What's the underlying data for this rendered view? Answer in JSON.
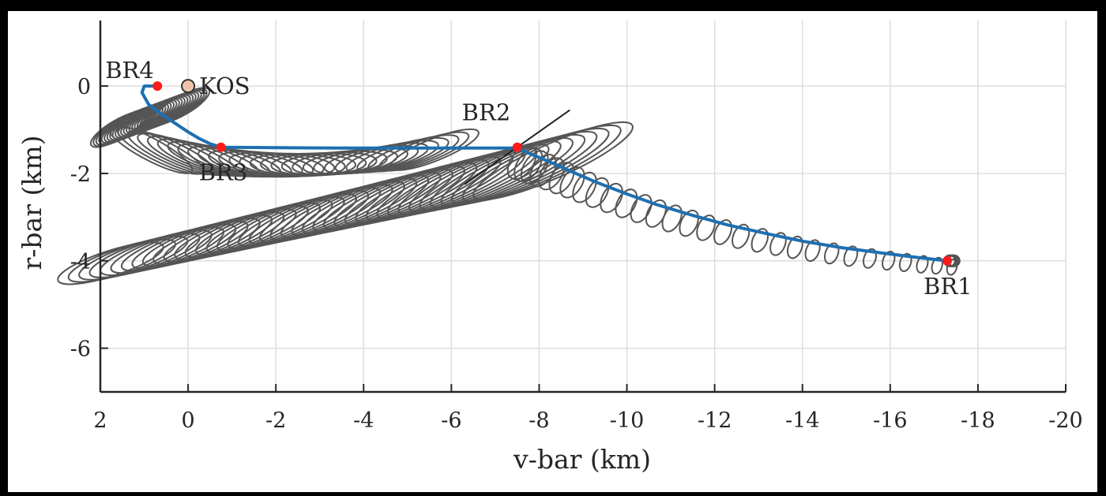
{
  "colors": {
    "trajectory": "#1f6fb0",
    "ellipse": "#555555",
    "waypoint": "#ff1a1a",
    "kos_fill": "#efc4ad",
    "grid": "#dddddd",
    "axis": "#262626"
  },
  "chart_data": {
    "type": "line",
    "title": "",
    "xlabel": "v-bar (km)",
    "ylabel": "r-bar (km)",
    "xlim": [
      2,
      -20
    ],
    "ylim": [
      -7,
      1.5
    ],
    "x_reversed": true,
    "grid": true,
    "legend": "none",
    "xticks": [
      2,
      0,
      -2,
      -4,
      -6,
      -8,
      -10,
      -12,
      -14,
      -16,
      -18,
      -20
    ],
    "xtick_labels": [
      "2",
      "0",
      "-2",
      "-4",
      "-6",
      "-8",
      "-10",
      "-12",
      "-14",
      "-16",
      "-18",
      "-20"
    ],
    "yticks": [
      0,
      -2,
      -4,
      -6
    ],
    "ytick_labels": [
      "0",
      "-2",
      "-4",
      "-6"
    ],
    "trajectory": {
      "x": [
        -17.3,
        -16.6,
        -15.8,
        -14.9,
        -14.0,
        -13.2,
        -12.3,
        -11.5,
        -10.7,
        -10.0,
        -9.3,
        -8.7,
        -8.2,
        -7.8,
        -7.5,
        -6.5,
        -5.0,
        -3.5,
        -2.0,
        -0.75,
        -0.5,
        -0.25,
        0.0,
        0.3,
        0.6,
        0.9,
        1.05,
        1.0,
        0.7
      ],
      "y": [
        -4.0,
        -3.92,
        -3.82,
        -3.7,
        -3.55,
        -3.38,
        -3.18,
        -2.96,
        -2.72,
        -2.47,
        -2.2,
        -1.94,
        -1.72,
        -1.55,
        -1.42,
        -1.42,
        -1.42,
        -1.42,
        -1.41,
        -1.4,
        -1.32,
        -1.2,
        -1.05,
        -0.85,
        -0.65,
        -0.42,
        -0.15,
        0.0,
        0.0
      ]
    },
    "waypoints": [
      {
        "name": "BR1",
        "x": -17.3,
        "y": -4.0
      },
      {
        "name": "BR2",
        "x": -7.5,
        "y": -1.4
      },
      {
        "name": "BR3",
        "x": -0.75,
        "y": -1.4
      },
      {
        "name": "BR4",
        "x": 0.7,
        "y": 0.0
      }
    ],
    "target": {
      "name": "KOS",
      "x": 0.0,
      "y": 0.0
    }
  }
}
